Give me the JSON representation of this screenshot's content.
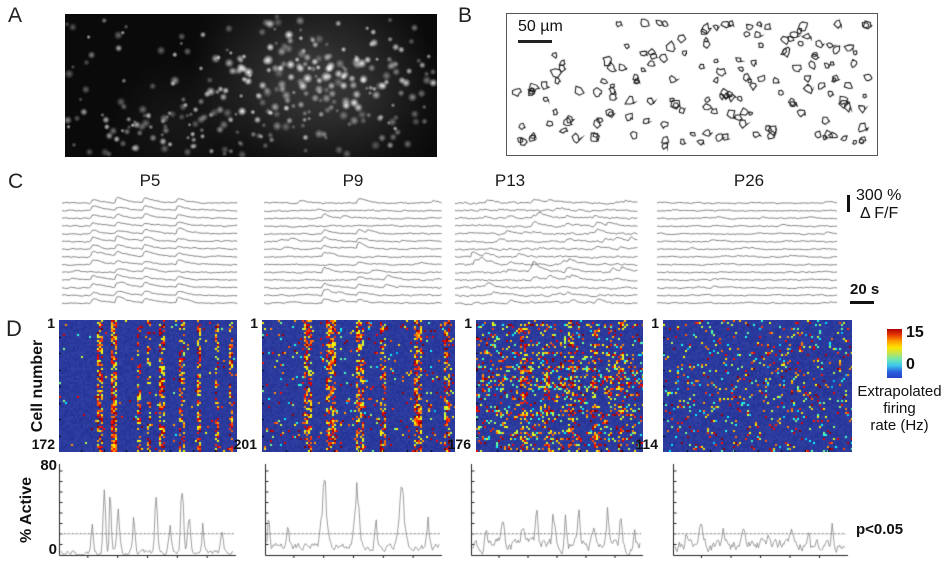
{
  "figure": {
    "panel_a": {
      "label": "A"
    },
    "panel_b": {
      "label": "B",
      "scale_bar_label": "50 µm"
    },
    "panel_c": {
      "label": "C",
      "age_labels": [
        "P5",
        "P9",
        "P13",
        "P26"
      ],
      "y_scale_value": "300 %",
      "y_scale_unit": "Δ F/F",
      "x_scale_label": "20 s"
    },
    "panel_d": {
      "label": "D",
      "y_axis_label": "Cell number",
      "top_cell_label": "1",
      "bottom_cell_labels": [
        "172",
        "201",
        "176",
        "114"
      ],
      "colorbar": {
        "max_label": "15",
        "min_label": "0",
        "title_line1": "Extrapolated",
        "title_line2": "firing",
        "title_line3": "rate (Hz)"
      },
      "active_plot": {
        "y_axis_label": "% Active",
        "y_max_label": "80",
        "y_min_label": "0",
        "significance_label": "p<0.05"
      }
    }
  },
  "colors": {
    "heatmap_background": "#2b3a9d",
    "colorbar_jet": [
      "#b00000",
      "#e83c00",
      "#ff9e00",
      "#ffe400",
      "#c0e455",
      "#6ee6b4",
      "#3cc4ee",
      "#2b5fdd",
      "#2844c8"
    ],
    "trace_color": "#3d3d3d",
    "active_trace_color": "#858585",
    "threshold_line_color": "#8f8f8f",
    "panel_a_background": "#0a0a0a"
  }
}
